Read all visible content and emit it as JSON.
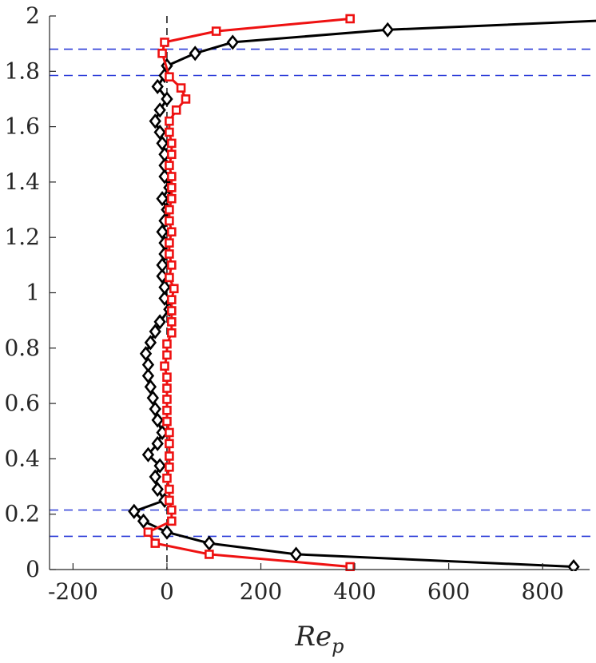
{
  "chart_data": {
    "type": "line",
    "title": "",
    "xlabel": "Re",
    "xlabel_sub": "p",
    "ylabel": "",
    "xlim": [
      -250,
      900
    ],
    "ylim": [
      0,
      2
    ],
    "xticks": [
      -200,
      0,
      200,
      400,
      600,
      800
    ],
    "xtick_labels": [
      "-200",
      "0",
      "200",
      "400",
      "600",
      "800"
    ],
    "yticks": [
      0,
      0.2,
      0.4,
      0.6,
      0.8,
      1,
      1.2,
      1.4,
      1.6,
      1.8,
      2
    ],
    "ytick_labels": [
      "0",
      "0.2",
      "0.4",
      "0.6",
      "0.8",
      "1",
      "1.2",
      "1.4",
      "1.6",
      "1.8",
      "2"
    ],
    "grid": false,
    "box": false,
    "reference_lines": {
      "vertical_x": [
        0
      ],
      "horizontal_y": [
        0.12,
        0.215,
        1.785,
        1.88
      ],
      "vertical_color": "#000000",
      "horizontal_color": "#2b3bd8"
    },
    "series": [
      {
        "marker": "diamond",
        "color": "#000000",
        "points": [
          [
            866,
            0.01
          ],
          [
            275,
            0.055
          ],
          [
            90,
            0.095
          ],
          [
            0,
            0.135
          ],
          [
            -50,
            0.175
          ],
          [
            -70,
            0.21
          ],
          [
            -5,
            0.25
          ],
          [
            -20,
            0.29
          ],
          [
            -25,
            0.335
          ],
          [
            -15,
            0.375
          ],
          [
            -40,
            0.415
          ],
          [
            -20,
            0.455
          ],
          [
            -10,
            0.495
          ],
          [
            -20,
            0.54
          ],
          [
            -25,
            0.58
          ],
          [
            -30,
            0.62
          ],
          [
            -35,
            0.66
          ],
          [
            -40,
            0.7
          ],
          [
            -40,
            0.74
          ],
          [
            -45,
            0.78
          ],
          [
            -35,
            0.82
          ],
          [
            -25,
            0.86
          ],
          [
            -15,
            0.895
          ],
          [
            5,
            0.94
          ],
          [
            -5,
            0.98
          ],
          [
            -5,
            1.02
          ],
          [
            -10,
            1.06
          ],
          [
            -10,
            1.1
          ],
          [
            -5,
            1.14
          ],
          [
            -5,
            1.18
          ],
          [
            -10,
            1.22
          ],
          [
            -5,
            1.26
          ],
          [
            0,
            1.3
          ],
          [
            -10,
            1.34
          ],
          [
            5,
            1.38
          ],
          [
            -5,
            1.42
          ],
          [
            -5,
            1.46
          ],
          [
            -5,
            1.5
          ],
          [
            -10,
            1.54
          ],
          [
            -15,
            1.58
          ],
          [
            -25,
            1.62
          ],
          [
            -15,
            1.66
          ],
          [
            0,
            1.7
          ],
          [
            -20,
            1.745
          ],
          [
            -5,
            1.785
          ],
          [
            0,
            1.82
          ],
          [
            60,
            1.865
          ],
          [
            140,
            1.905
          ],
          [
            470,
            1.95
          ],
          [
            950,
            1.985
          ]
        ]
      },
      {
        "marker": "square",
        "color": "#ee1111",
        "points": [
          [
            390,
            0.01
          ],
          [
            90,
            0.055
          ],
          [
            -25,
            0.095
          ],
          [
            -40,
            0.135
          ],
          [
            10,
            0.175
          ],
          [
            10,
            0.215
          ],
          [
            5,
            0.25
          ],
          [
            5,
            0.29
          ],
          [
            0,
            0.33
          ],
          [
            5,
            0.37
          ],
          [
            5,
            0.41
          ],
          [
            5,
            0.455
          ],
          [
            5,
            0.495
          ],
          [
            0,
            0.535
          ],
          [
            0,
            0.575
          ],
          [
            0,
            0.615
          ],
          [
            0,
            0.655
          ],
          [
            0,
            0.695
          ],
          [
            -5,
            0.735
          ],
          [
            0,
            0.775
          ],
          [
            0,
            0.815
          ],
          [
            10,
            0.855
          ],
          [
            10,
            0.895
          ],
          [
            10,
            0.935
          ],
          [
            10,
            0.975
          ],
          [
            15,
            1.015
          ],
          [
            5,
            1.055
          ],
          [
            10,
            1.1
          ],
          [
            5,
            1.14
          ],
          [
            5,
            1.18
          ],
          [
            10,
            1.22
          ],
          [
            5,
            1.26
          ],
          [
            5,
            1.3
          ],
          [
            10,
            1.34
          ],
          [
            10,
            1.38
          ],
          [
            10,
            1.42
          ],
          [
            5,
            1.46
          ],
          [
            10,
            1.5
          ],
          [
            10,
            1.54
          ],
          [
            5,
            1.58
          ],
          [
            5,
            1.62
          ],
          [
            20,
            1.66
          ],
          [
            40,
            1.7
          ],
          [
            30,
            1.74
          ],
          [
            5,
            1.78
          ],
          [
            -10,
            1.865
          ],
          [
            -5,
            1.905
          ],
          [
            105,
            1.945
          ],
          [
            390,
            1.99
          ]
        ]
      }
    ]
  }
}
